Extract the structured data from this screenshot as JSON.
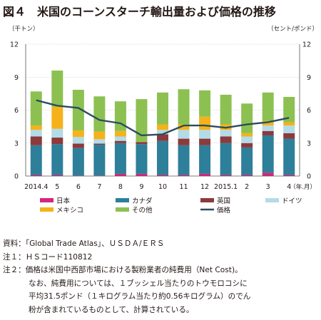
{
  "title": "図４　米国のコーンスターチ輸出量および価格の推移",
  "chart_data": {
    "type": "bar",
    "stacked": true,
    "left_unit": "（千トン）",
    "right_unit": "（セント/ポンド）",
    "ylim_left": [
      0,
      12
    ],
    "ylim_right": [
      0,
      12
    ],
    "yticks_left": [
      "0",
      "3",
      "6",
      "9",
      "12"
    ],
    "yticks_right": [
      "0",
      "3",
      "6",
      "9",
      "12"
    ],
    "grid": true,
    "legend_position": "bottom",
    "categories": [
      "2014.4",
      "5",
      "6",
      "7",
      "8",
      "9",
      "10",
      "11",
      "12",
      "2015.1",
      "2",
      "3",
      "4"
    ],
    "x_unit": "（年.月）",
    "series": [
      {
        "name": "日本",
        "color": "#d6257c",
        "values": [
          0.1,
          0.1,
          0.05,
          0.05,
          0.2,
          0.2,
          0.1,
          0.1,
          0.2,
          0.1,
          0.1,
          0.3,
          0.1
        ]
      },
      {
        "name": "カナダ",
        "color": "#2e7f99",
        "values": [
          2.7,
          2.8,
          2.5,
          2.8,
          2.8,
          2.7,
          3.1,
          2.7,
          2.6,
          2.9,
          2.5,
          3.4,
          3.3
        ]
      },
      {
        "name": "英国",
        "color": "#8c3a3c",
        "values": [
          0.8,
          0.6,
          0.4,
          0.1,
          0.2,
          0.2,
          0.6,
          0.6,
          0.6,
          0.6,
          0.4,
          0.4,
          0.5
        ]
      },
      {
        "name": "ドイツ",
        "color": "#b3dbe8",
        "values": [
          0.6,
          0.8,
          0.6,
          0.4,
          0.4,
          0.0,
          0.4,
          0.8,
          0.8,
          0.6,
          0.6,
          0.5,
          0.7
        ]
      },
      {
        "name": "メキシコ",
        "color": "#f5b21a",
        "values": [
          0.4,
          2.0,
          0.6,
          0.7,
          0.5,
          0.0,
          0.5,
          0.5,
          1.2,
          0.5,
          0.3,
          0.4,
          0.3
        ]
      },
      {
        "name": "その他",
        "color": "#8cc152",
        "values": [
          3.1,
          3.3,
          3.7,
          3.2,
          2.7,
          3.9,
          2.9,
          3.2,
          2.4,
          2.7,
          2.7,
          2.6,
          2.3
        ]
      }
    ],
    "line_series": {
      "name": "価格",
      "color": "#2b4d5e",
      "values": [
        6.9,
        6.4,
        6.2,
        5.1,
        4.8,
        3.7,
        3.8,
        4.6,
        4.6,
        4.4,
        4.7,
        4.9,
        5.3
      ]
    }
  },
  "notes": [
    "資料：「Global Trade Atlas」、ＵＳＤＡ/ＥＲＳ",
    "注１：ＨＳコード110812",
    "注２：価格は米国中西部市場における製粉業者の純費用（Net Cost)。",
    "なお、純費用については、１ブッシェル当たりのトウモロコシに",
    "平均31.5ポンド（１キログラム当たり約0.56キログラム）のでん",
    "粉が含まれているものとして、計算されている。"
  ]
}
